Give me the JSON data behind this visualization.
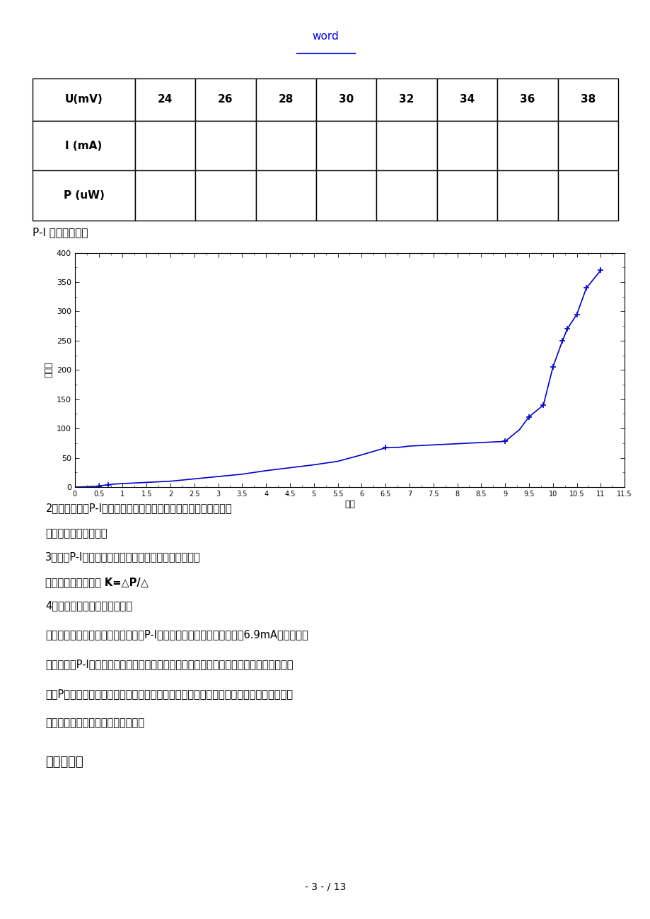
{
  "title_text": "word",
  "table_headers": [
    "U(mV)",
    "24",
    "26",
    "28",
    "30",
    "32",
    "34",
    "36",
    "38"
  ],
  "table_rows": [
    "I (mA)",
    "P (uW)"
  ],
  "plot_label_pi": "P-I 特性曲线图：",
  "xlabel": "电流",
  "ylabel": "光功率",
  "xlim": [
    0,
    11.5
  ],
  "ylim": [
    0,
    400
  ],
  "xticks": [
    0,
    0.5,
    1,
    1.5,
    2,
    2.5,
    3,
    3.5,
    4,
    4.5,
    5,
    5.5,
    6,
    6.5,
    7,
    7.5,
    8,
    8.5,
    9,
    9.5,
    10,
    10.5,
    11,
    11.5
  ],
  "yticks": [
    0,
    50,
    100,
    150,
    200,
    250,
    300,
    350,
    400
  ],
  "curve_x": [
    0.0,
    0.1,
    0.2,
    0.3,
    0.4,
    0.5,
    0.6,
    0.7,
    0.8,
    0.9,
    1.0,
    1.5,
    2.0,
    2.5,
    3.0,
    3.5,
    4.0,
    4.5,
    5.0,
    5.5,
    6.0,
    6.5,
    6.8,
    7.0,
    7.5,
    8.0,
    8.5,
    9.0,
    9.3,
    9.5,
    9.8,
    10.0,
    10.2,
    10.3,
    10.5,
    10.7,
    11.0
  ],
  "curve_y": [
    0.0,
    0.2,
    0.5,
    0.8,
    1.2,
    1.8,
    3.0,
    4.0,
    5.0,
    5.5,
    6.0,
    8.0,
    10.0,
    14.0,
    18.0,
    22.0,
    28.0,
    33.0,
    38.0,
    44.0,
    55.0,
    67.0,
    68.0,
    70.0,
    72.0,
    74.0,
    76.0,
    78.0,
    98.0,
    120.0,
    140.0,
    205.0,
    250.0,
    270.0,
    295.0,
    340.0,
    370.0
  ],
  "marker_x": [
    0.5,
    0.7,
    6.5,
    9.0,
    9.5,
    9.8,
    10.0,
    10.2,
    10.3,
    10.5,
    10.7,
    11.0
  ],
  "marker_y": [
    1.8,
    4.0,
    67.0,
    78.0,
    120.0,
    140.0,
    205.0,
    250.0,
    270.0,
    295.0,
    340.0,
    370.0
  ],
  "curve_color": "#0000CC",
  "marker_color": "#0000CC",
  "line2_text": "2、根据所画的P-I特性曲线，找出半导体激光器阈值电流的大小。",
  "line3_text": "由上图可知：阈值电流",
  "line4_text": "3、根据P-I特性曲线，求出半导体激光器的斜率效率。",
  "line5_text": "半导体激光器的斜率 K=△P/△",
  "line6_text": "4、实验结果与误差分析正确。",
  "para_line1": "将上表所得实验结果进展分析，绘刽P-I特性曲线可得其阈值电流大概在6.9mA左右，同时",
  "para_line2": "也可以得到P-I特性是选择半导体激光器的重要参考。在选择时，应选阈值电流尽可能小，",
  "para_line3": "对应P値小，而且没有扭折点的半导体激光器，这样激光器工作电流小，工作稳定性搞，消",
  "para_line4": "光比大，而且不易产生光信号失真。",
  "section_text": "六、思考题",
  "page_text": "- 3 - / 13",
  "background_color": "#ffffff",
  "title_color": "#0000EE",
  "underline_color": "#0000EE"
}
